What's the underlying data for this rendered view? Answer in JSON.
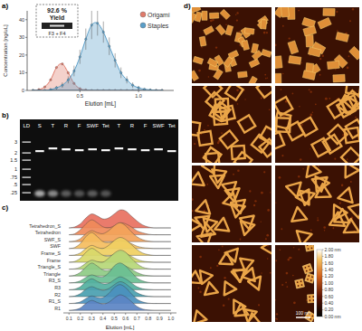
{
  "chart_data": [
    {
      "type": "area",
      "title": "a)",
      "x_label": "Elution [mL]",
      "y_label": "Concentration [ng/uL]",
      "annotations": [
        "92.6 %",
        "Yield",
        "F3 + F4"
      ],
      "x": [
        0.1,
        0.15,
        0.2,
        0.25,
        0.3,
        0.35,
        0.4,
        0.45,
        0.5,
        0.55,
        0.6,
        0.65,
        0.7,
        0.75,
        0.8,
        0.85,
        0.9,
        0.95,
        1.0,
        1.05,
        1.1,
        1.15,
        1.2
      ],
      "series": [
        {
          "name": "Origami",
          "color": "#e07a6a",
          "values": [
            0,
            0.5,
            2,
            6,
            13,
            15,
            10,
            4,
            1,
            0.3,
            0,
            0,
            0,
            0,
            0,
            0,
            0,
            0,
            0,
            0,
            0,
            0,
            0
          ]
        },
        {
          "name": "Staples",
          "color": "#5a9ec8",
          "values": [
            0,
            0,
            0,
            0.5,
            1.5,
            3,
            6,
            11,
            19,
            29,
            37,
            38,
            33,
            25,
            17,
            10,
            6,
            3,
            1.5,
            0.7,
            0.3,
            0,
            0
          ],
          "errors": [
            0,
            0,
            0,
            0,
            1,
            1.5,
            2,
            3,
            4,
            6,
            8,
            7,
            6,
            5,
            4,
            3,
            2,
            1.5,
            1,
            0.5,
            0,
            0,
            0
          ]
        }
      ],
      "xlim": [
        0.05,
        1.3
      ],
      "ylim": [
        0,
        45
      ],
      "xticks": [
        0.5,
        {
          "value": 1,
          "label": "1.0"
        }
      ],
      "yticks": [
        0,
        10,
        20,
        30,
        40
      ],
      "legend": "upper right",
      "grid": false
    },
    {
      "type": "ridgeline",
      "title": "c)",
      "x_label": "Elution [mL]",
      "x": [
        0.1,
        0.15,
        0.2,
        0.25,
        0.3,
        0.35,
        0.4,
        0.45,
        0.5,
        0.55,
        0.6,
        0.65,
        0.7,
        0.75,
        0.8,
        0.85,
        0.9,
        0.95,
        1.0
      ],
      "series": [
        {
          "name": "Tetrahedron_S",
          "color": "#e8705f",
          "values": [
            0,
            0.05,
            0.2,
            0.5,
            0.7,
            0.6,
            0.45,
            0.5,
            0.7,
            0.9,
            0.85,
            0.6,
            0.35,
            0.15,
            0.05,
            0,
            0,
            0,
            0
          ]
        },
        {
          "name": "Tetrahedron",
          "color": "#ef8a5a",
          "values": [
            0,
            0.05,
            0.25,
            0.55,
            0.75,
            0.6,
            0.4,
            0.35,
            0.45,
            0.6,
            0.55,
            0.4,
            0.2,
            0.1,
            0.03,
            0,
            0,
            0,
            0
          ]
        },
        {
          "name": "SWF_S",
          "color": "#f3a35a",
          "values": [
            0,
            0.03,
            0.15,
            0.4,
            0.55,
            0.45,
            0.4,
            0.55,
            0.8,
            0.95,
            0.8,
            0.5,
            0.25,
            0.1,
            0.03,
            0,
            0,
            0,
            0
          ]
        },
        {
          "name": "SWF",
          "color": "#f5bd5e",
          "values": [
            0,
            0.05,
            0.25,
            0.6,
            0.8,
            0.6,
            0.35,
            0.3,
            0.35,
            0.4,
            0.35,
            0.25,
            0.12,
            0.05,
            0.02,
            0,
            0,
            0,
            0
          ]
        },
        {
          "name": "Frame_S",
          "color": "#f0cf62",
          "values": [
            0,
            0.02,
            0.12,
            0.35,
            0.5,
            0.4,
            0.35,
            0.5,
            0.75,
            0.9,
            0.8,
            0.55,
            0.3,
            0.12,
            0.04,
            0,
            0,
            0,
            0
          ]
        },
        {
          "name": "Frame",
          "color": "#d8d86a",
          "values": [
            0,
            0.04,
            0.2,
            0.5,
            0.7,
            0.55,
            0.35,
            0.3,
            0.4,
            0.5,
            0.45,
            0.3,
            0.15,
            0.06,
            0.02,
            0,
            0,
            0,
            0
          ]
        },
        {
          "name": "Triangle_S",
          "color": "#b6d777",
          "values": [
            0,
            0.02,
            0.1,
            0.3,
            0.45,
            0.38,
            0.35,
            0.55,
            0.8,
            0.95,
            0.85,
            0.55,
            0.28,
            0.1,
            0.03,
            0,
            0,
            0,
            0
          ]
        },
        {
          "name": "Triangle",
          "color": "#8ecb84",
          "values": [
            0,
            0.04,
            0.18,
            0.45,
            0.65,
            0.5,
            0.3,
            0.28,
            0.4,
            0.55,
            0.5,
            0.35,
            0.18,
            0.07,
            0.02,
            0,
            0,
            0,
            0
          ]
        },
        {
          "name": "R3_S",
          "color": "#6abf93",
          "values": [
            0,
            0.02,
            0.1,
            0.28,
            0.4,
            0.32,
            0.3,
            0.5,
            0.85,
            1.0,
            0.85,
            0.55,
            0.25,
            0.1,
            0.03,
            0,
            0,
            0,
            0
          ]
        },
        {
          "name": "R3",
          "color": "#52b0a0",
          "values": [
            0,
            0.03,
            0.15,
            0.4,
            0.55,
            0.42,
            0.3,
            0.32,
            0.5,
            0.65,
            0.55,
            0.35,
            0.15,
            0.05,
            0.02,
            0,
            0,
            0,
            0
          ]
        },
        {
          "name": "R2",
          "color": "#4aa0b0",
          "values": [
            0,
            0.03,
            0.15,
            0.38,
            0.5,
            0.4,
            0.32,
            0.4,
            0.6,
            0.75,
            0.65,
            0.42,
            0.2,
            0.08,
            0.02,
            0,
            0,
            0,
            0
          ]
        },
        {
          "name": "R1_S",
          "color": "#4a90be",
          "values": [
            0,
            0.02,
            0.08,
            0.25,
            0.38,
            0.3,
            0.3,
            0.5,
            0.8,
            0.95,
            0.8,
            0.5,
            0.22,
            0.08,
            0.02,
            0,
            0,
            0,
            0
          ]
        },
        {
          "name": "R1",
          "color": "#5b84c4",
          "values": [
            0,
            0.03,
            0.12,
            0.35,
            0.5,
            0.4,
            0.32,
            0.4,
            0.62,
            0.78,
            0.68,
            0.45,
            0.2,
            0.07,
            0.02,
            0,
            0,
            0,
            0
          ]
        }
      ],
      "xlim": [
        0.05,
        1.05
      ],
      "ylim": [
        0,
        1
      ],
      "xticks": [
        0.1,
        0.2,
        0.3,
        0.4,
        0.5,
        0.6,
        0.7,
        0.8,
        0.9,
        {
          "value": 1,
          "label": "1.0"
        }
      ],
      "tick_labels": "x"
    }
  ],
  "gel": {
    "title": "b)",
    "lanes": [
      "LD",
      "S",
      "T",
      "R",
      "F",
      "SWF",
      "Tet",
      "T",
      "R",
      "F",
      "SWF",
      "Tet"
    ],
    "ladder": [
      "3",
      "2",
      "1.5",
      "1",
      ".75",
      ".5",
      ".25"
    ]
  },
  "afm": {
    "title": "d)",
    "scale_bar": "100 nm",
    "colorbar": {
      "range": [
        0,
        2
      ],
      "ticks": [
        {
          "value": 2,
          "label": "2.00 nm"
        },
        {
          "value": 1.8,
          "label": "1.80"
        },
        {
          "value": 1.6,
          "label": "1.60"
        },
        {
          "value": 1.4,
          "label": "1.40"
        },
        {
          "value": 1.2,
          "label": "1.20"
        },
        {
          "value": 1,
          "label": "1.00"
        },
        {
          "value": 0.8,
          "label": "0.80"
        },
        {
          "value": 0.6,
          "label": "0.60"
        },
        {
          "value": 0.4,
          "label": "0.40"
        },
        {
          "value": 0.2,
          "label": "0.20"
        },
        {
          "value": 0,
          "label": "0.00 nm"
        }
      ]
    }
  }
}
